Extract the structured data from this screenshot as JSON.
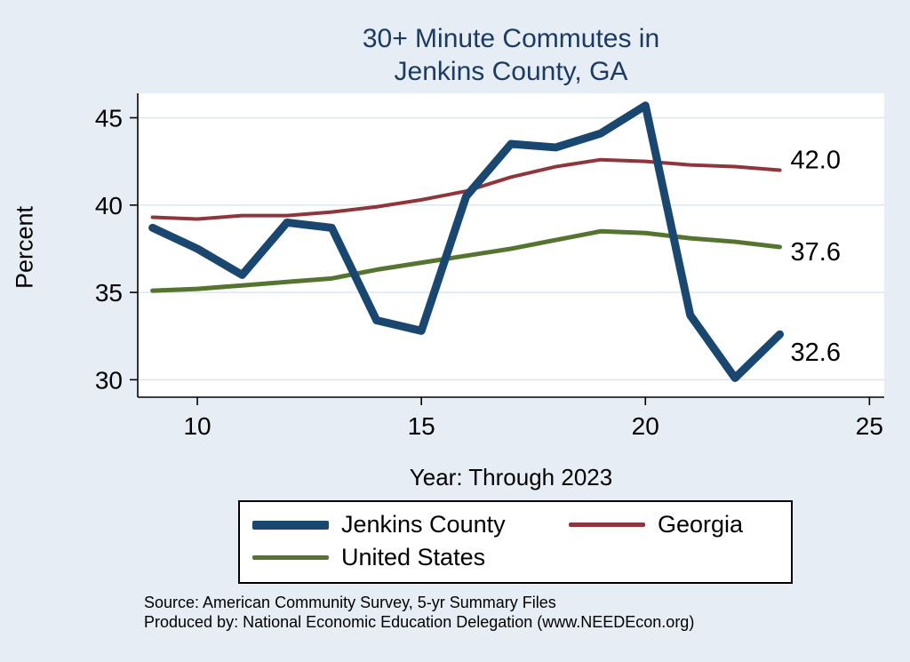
{
  "title": {
    "line1": "30+ Minute Commutes in",
    "line2": "Jenkins County, GA"
  },
  "axes": {
    "ylabel": "Percent",
    "xlabel": "Year: Through 2023",
    "x_ticks": [
      10,
      15,
      20,
      25
    ],
    "y_ticks": [
      30,
      35,
      40,
      45
    ],
    "xlim": [
      8.67,
      25.33
    ],
    "ylim": [
      29.0,
      46.4
    ]
  },
  "chart_data": {
    "type": "line",
    "title": "30+ Minute Commutes in Jenkins County, GA",
    "xlabel": "Year: Through 2023",
    "ylabel": "Percent",
    "x": [
      9,
      10,
      11,
      12,
      13,
      14,
      15,
      16,
      17,
      18,
      19,
      20,
      21,
      22,
      23
    ],
    "series": [
      {
        "name": "Jenkins County",
        "color": "#1a476f",
        "line_width": 9,
        "values": [
          38.7,
          37.5,
          36.0,
          39.0,
          38.7,
          33.4,
          32.8,
          40.5,
          43.5,
          43.3,
          44.1,
          45.7,
          33.7,
          30.1,
          32.6
        ],
        "end_label": "32.6",
        "end_label_dy": 20
      },
      {
        "name": "Georgia",
        "color": "#90353b",
        "line_width": 4,
        "values": [
          39.3,
          39.2,
          39.4,
          39.4,
          39.6,
          39.9,
          40.3,
          40.8,
          41.6,
          42.2,
          42.6,
          42.5,
          42.3,
          42.2,
          42.0
        ],
        "end_label": "42.0",
        "end_label_dy": -12
      },
      {
        "name": "United States",
        "color": "#55752f",
        "line_width": 5,
        "values": [
          35.1,
          35.2,
          35.4,
          35.6,
          35.8,
          36.3,
          36.7,
          37.1,
          37.5,
          38.0,
          38.5,
          38.4,
          38.1,
          37.9,
          37.6
        ],
        "end_label": "37.6",
        "end_label_dy": 5
      }
    ],
    "grid": "horizontal",
    "legend_position": "bottom",
    "xlim": [
      8.67,
      25.33
    ],
    "ylim": [
      29.0,
      46.4
    ]
  },
  "legend": {
    "items": [
      {
        "label": "Jenkins County"
      },
      {
        "label": "Georgia"
      },
      {
        "label": "United States"
      }
    ]
  },
  "source": {
    "line1": "Source: American Community Survey, 5-yr Summary Files",
    "line2": "Produced by: National Economic Education Delegation (www.NEEDEcon.org)"
  },
  "colors": {
    "background": "#e6edf5",
    "title": "#1b3a64",
    "plot_background": "#ffffff",
    "gridline": "#d9e4ef",
    "axis": "#000000",
    "end_label_text": "#000000"
  }
}
